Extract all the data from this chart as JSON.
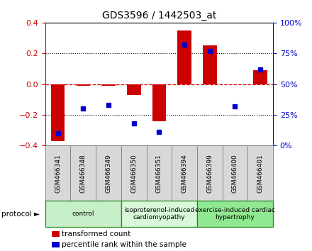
{
  "title": "GDS3596 / 1442503_at",
  "samples": [
    "GSM466341",
    "GSM466348",
    "GSM466349",
    "GSM466350",
    "GSM466351",
    "GSM466394",
    "GSM466399",
    "GSM466400",
    "GSM466401"
  ],
  "transformed_count": [
    -0.37,
    -0.01,
    -0.01,
    -0.07,
    -0.24,
    0.35,
    0.25,
    0.0,
    0.09
  ],
  "percentile_rank": [
    10,
    30,
    33,
    18,
    11,
    82,
    77,
    32,
    62
  ],
  "groups": [
    {
      "label": "control",
      "start": 0,
      "end": 3,
      "color": "#c8f0c8"
    },
    {
      "label": "isoproterenol-induced\ncardiomyopathy",
      "start": 3,
      "end": 6,
      "color": "#d8f8d8"
    },
    {
      "label": "exercise-induced cardiac\nhypertrophy",
      "start": 6,
      "end": 9,
      "color": "#90e890"
    }
  ],
  "ylim_left": [
    -0.4,
    0.4
  ],
  "ylim_right": [
    0,
    100
  ],
  "yticks_left": [
    -0.4,
    -0.2,
    0.0,
    0.2,
    0.4
  ],
  "yticks_right": [
    0,
    25,
    50,
    75,
    100
  ],
  "bar_color": "#cc0000",
  "dot_color": "#0000cc",
  "group_border_color": "#228822",
  "sample_box_color": "#d8d8d8",
  "protocol_label": "protocol ►",
  "legend_items": [
    {
      "color": "#cc0000",
      "label": "transformed count"
    },
    {
      "color": "#0000cc",
      "label": "percentile rank within the sample"
    }
  ]
}
